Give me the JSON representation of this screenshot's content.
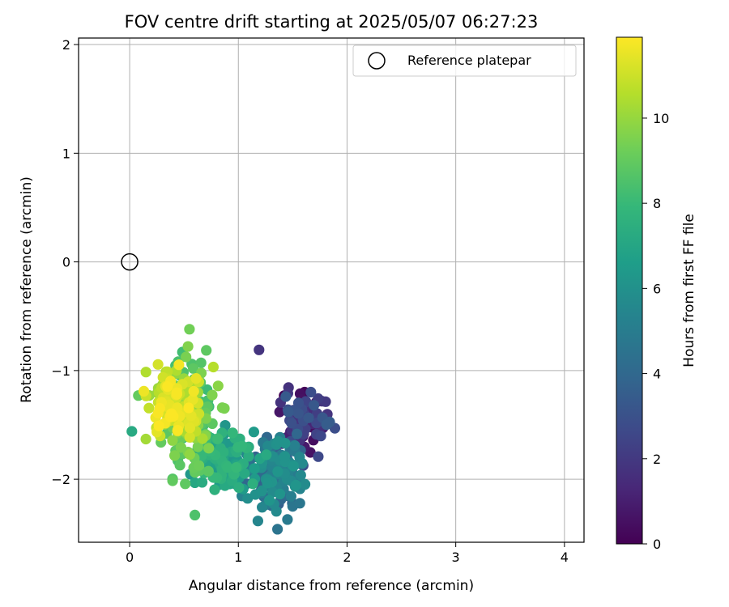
{
  "chart_data": {
    "type": "scatter",
    "title": "FOV centre drift starting at 2025/05/07 06:27:23",
    "xlabel": "Angular distance from reference (arcmin)",
    "ylabel": "Rotation from reference (arcmin)",
    "xlim": [
      -0.47,
      4.18
    ],
    "ylim": [
      -2.58,
      2.06
    ],
    "xticks": [
      0,
      1,
      2,
      3,
      4
    ],
    "yticks": [
      -2,
      -1,
      0,
      1,
      2
    ],
    "grid": true,
    "legend": {
      "position": "top-right",
      "entries": [
        "Reference platepar"
      ]
    },
    "reference_point": {
      "x": 0,
      "y": 0,
      "label": "Reference platepar"
    },
    "colorbar": {
      "label": "Hours from first FF file",
      "range": [
        0,
        11.9
      ],
      "ticks": [
        0,
        2,
        4,
        6,
        8,
        10
      ],
      "colormap": "viridis"
    },
    "point_groups": [
      {
        "hours": [
          0,
          3.5
        ],
        "x_range": [
          1.3,
          1.95
        ],
        "y_range": [
          -1.95,
          -1.0
        ],
        "count": 90
      },
      {
        "hours": [
          3.5,
          6.2
        ],
        "x_range": [
          0.95,
          1.75
        ],
        "y_range": [
          -2.45,
          -1.45
        ],
        "count": 150
      },
      {
        "hours": [
          6.2,
          8.0
        ],
        "x_range": [
          0.45,
          1.3
        ],
        "y_range": [
          -2.2,
          -1.4
        ],
        "count": 110
      },
      {
        "hours": [
          8.0,
          10.0
        ],
        "x_range": [
          0.2,
          0.95
        ],
        "y_range": [
          -2.35,
          -0.6
        ],
        "count": 130
      },
      {
        "hours": [
          10.0,
          11.9
        ],
        "x_range": [
          0.05,
          0.8
        ],
        "y_range": [
          -1.75,
          -0.85
        ],
        "count": 120
      }
    ],
    "outliers": [
      {
        "x": 1.19,
        "y": -0.81,
        "hours": 1.8
      },
      {
        "x": 1.36,
        "y": -2.46,
        "hours": 4.6
      },
      {
        "x": 0.02,
        "y": -1.56,
        "hours": 7.2
      },
      {
        "x": 0.08,
        "y": -1.23,
        "hours": 9.0
      },
      {
        "x": 0.55,
        "y": -0.62,
        "hours": 9.3
      },
      {
        "x": 0.6,
        "y": -2.33,
        "hours": 8.5
      }
    ]
  },
  "colors": {
    "viridis": [
      "#440154",
      "#482878",
      "#3e4989",
      "#31688e",
      "#26828e",
      "#1f9e89",
      "#35b779",
      "#6ece58",
      "#b5de2b",
      "#fde725"
    ],
    "grid": "#b0b0b0"
  }
}
